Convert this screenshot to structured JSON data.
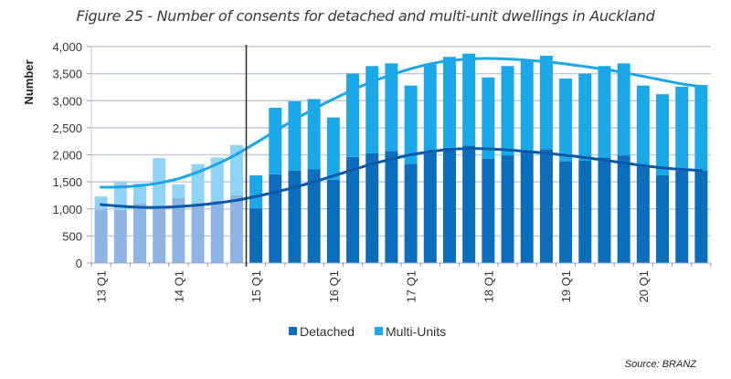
{
  "chart_data": {
    "type": "bar",
    "stacked": true,
    "title": "Figure 25 - Number of consents for detached and multi-unit dwellings in Auckland",
    "xlabel": "",
    "ylabel": "Number",
    "ylim": [
      0,
      4000
    ],
    "yticks": [
      0,
      500,
      1000,
      1500,
      2000,
      2500,
      3000,
      3500,
      4000
    ],
    "ytick_labels": [
      "0",
      "500",
      "1,000",
      "1,500",
      "2,000",
      "2,500",
      "3,000",
      "3,500",
      "4,000"
    ],
    "grid": true,
    "categories": [
      "13 Q1",
      "13 Q2",
      "13 Q3",
      "13 Q4",
      "14 Q1",
      "14 Q2",
      "14 Q3",
      "14 Q4",
      "15 Q1",
      "15 Q2",
      "15 Q3",
      "15 Q4",
      "16 Q1",
      "16 Q2",
      "16 Q3",
      "16 Q4",
      "17 Q1",
      "17 Q2",
      "17 Q3",
      "17 Q4",
      "18 Q1",
      "18 Q2",
      "18 Q3",
      "18 Q4",
      "19 Q1",
      "19 Q2",
      "19 Q3",
      "19 Q4",
      "20 Q1",
      "20 Q2",
      "20 Q3",
      "20 Q4"
    ],
    "xtick_labels_shown": [
      "13 Q1",
      "14 Q1",
      "15 Q1",
      "16 Q1",
      "17 Q1",
      "18 Q1",
      "19 Q1",
      "20 Q1"
    ],
    "series": [
      {
        "name": "Detached",
        "color": "#0a6ebd",
        "faded_color": "#8db4e2",
        "values": [
          990,
          980,
          1100,
          1040,
          1200,
          1110,
          1150,
          1250,
          1010,
          1640,
          1710,
          1730,
          1540,
          1960,
          2030,
          2070,
          1830,
          2070,
          2130,
          2170,
          1930,
          1990,
          2070,
          2100,
          1880,
          1890,
          1950,
          1990,
          1790,
          1620,
          1710,
          1710
        ]
      },
      {
        "name": "Multi-Units",
        "color": "#1aa8e8",
        "faded_color": "#8fd4f6",
        "values": [
          240,
          520,
          370,
          900,
          255,
          720,
          800,
          930,
          610,
          1230,
          1280,
          1300,
          1150,
          1540,
          1610,
          1620,
          1450,
          1610,
          1680,
          1700,
          1500,
          1650,
          1690,
          1730,
          1530,
          1610,
          1690,
          1700,
          1490,
          1500,
          1550,
          1580
        ]
      }
    ],
    "trend_lines": [
      {
        "name": "Total trend",
        "color": "#1aa8e8",
        "values": [
          1400,
          1405,
          1430,
          1480,
          1560,
          1680,
          1830,
          2010,
          2220,
          2440,
          2650,
          2850,
          3030,
          3200,
          3350,
          3480,
          3590,
          3680,
          3740,
          3770,
          3780,
          3770,
          3750,
          3720,
          3680,
          3630,
          3580,
          3520,
          3450,
          3380,
          3310,
          3260
        ]
      },
      {
        "name": "Detached trend",
        "color": "#0a5aa8",
        "values": [
          1080,
          1050,
          1030,
          1030,
          1045,
          1070,
          1110,
          1160,
          1230,
          1310,
          1400,
          1500,
          1610,
          1720,
          1830,
          1920,
          2000,
          2060,
          2100,
          2115,
          2110,
          2090,
          2060,
          2030,
          1990,
          1950,
          1900,
          1850,
          1800,
          1760,
          1730,
          1710
        ]
      }
    ],
    "divider_after_category": "14 Q4",
    "faded_categories_before_divider": true,
    "legend": {
      "position": "bottom",
      "entries": [
        "Detached",
        "Multi-Units"
      ]
    },
    "source": "Source: BRANZ"
  }
}
